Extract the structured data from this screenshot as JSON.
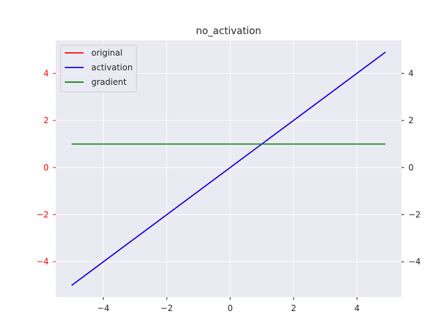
{
  "chart_data": {
    "type": "line",
    "title": "no_activation",
    "xlabel": "",
    "ylabel": "",
    "xlim": [
      -5.5,
      5.4
    ],
    "ylim": [
      -5.5,
      5.4
    ],
    "x_ticks": [
      -4,
      -2,
      0,
      2,
      4
    ],
    "y_ticks": [
      -4,
      -2,
      0,
      2,
      4
    ],
    "x_tick_labels": [
      "−4",
      "−2",
      "0",
      "2",
      "4"
    ],
    "y_tick_labels": [
      "−4",
      "−2",
      "0",
      "2",
      "4"
    ],
    "grid": true,
    "legend_position": "upper-left",
    "secondary_y_axis": true,
    "series": [
      {
        "name": "original",
        "color": "#ff0000",
        "x": [
          -5,
          4.9
        ],
        "y": [
          -5,
          4.9
        ]
      },
      {
        "name": "activation",
        "color": "#0000ff",
        "x": [
          -5,
          4.9
        ],
        "y": [
          -5,
          4.9
        ]
      },
      {
        "name": "gradient",
        "color": "#008000",
        "x": [
          -5,
          4.9
        ],
        "y": [
          1,
          1
        ]
      }
    ],
    "left_tick_color": "#ff0000",
    "right_tick_color": "#262626",
    "bottom_tick_color": "#262626",
    "background_color": "#eaeaf2",
    "grid_color": "#ffffff"
  }
}
